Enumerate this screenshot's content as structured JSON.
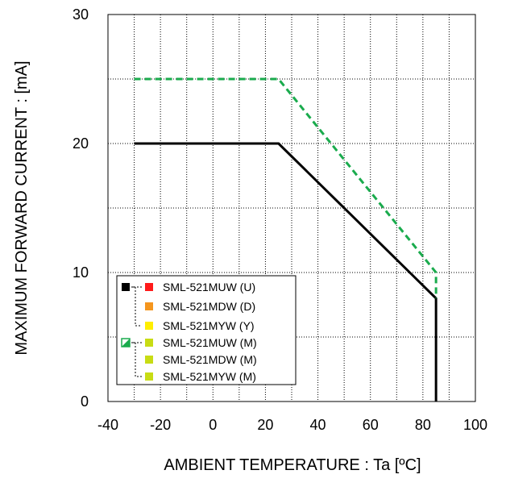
{
  "chart_data": {
    "type": "line",
    "xlabel": "AMBIENT TEMPERATURE : Ta [ºC]",
    "ylabel": "MAXIMUM FORWARD CURRENT :  [mA]",
    "xlim": [
      -40,
      100
    ],
    "ylim": [
      0,
      30
    ],
    "x_ticks": [
      "-40",
      "-20",
      "0",
      "20",
      "40",
      "60",
      "80",
      "100"
    ],
    "y_ticks": [
      "0",
      "10",
      "20",
      "30"
    ],
    "grid": "dotted, x every 10, y every 5",
    "legend_position": "lower-left",
    "series": [
      {
        "group": "black-solid",
        "color": "#000000",
        "style": "solid",
        "x": [
          -30,
          25,
          85,
          85
        ],
        "y": [
          20,
          20,
          8,
          0
        ]
      },
      {
        "group": "green-dashed",
        "color": "#1aab4d",
        "style": "dashed",
        "x": [
          -30,
          25,
          85,
          85
        ],
        "y": [
          25,
          25,
          10,
          8
        ]
      }
    ],
    "legend": [
      {
        "label": "SML-521MUW (U)",
        "color": "#ff1a1a",
        "group": "black-solid"
      },
      {
        "label": "SML-521MDW (D)",
        "color": "#f5961e",
        "group": "black-solid"
      },
      {
        "label": "SML-521MYW (Y)",
        "color": "#ffee00",
        "group": "black-solid"
      },
      {
        "label": "SML-521MUW (M)",
        "color": "#c8dc14",
        "group": "green-dashed"
      },
      {
        "label": "SML-521MDW (M)",
        "color": "#c8dc14",
        "group": "green-dashed"
      },
      {
        "label": "SML-521MYW (M)",
        "color": "#c8dc14",
        "group": "green-dashed"
      }
    ]
  }
}
